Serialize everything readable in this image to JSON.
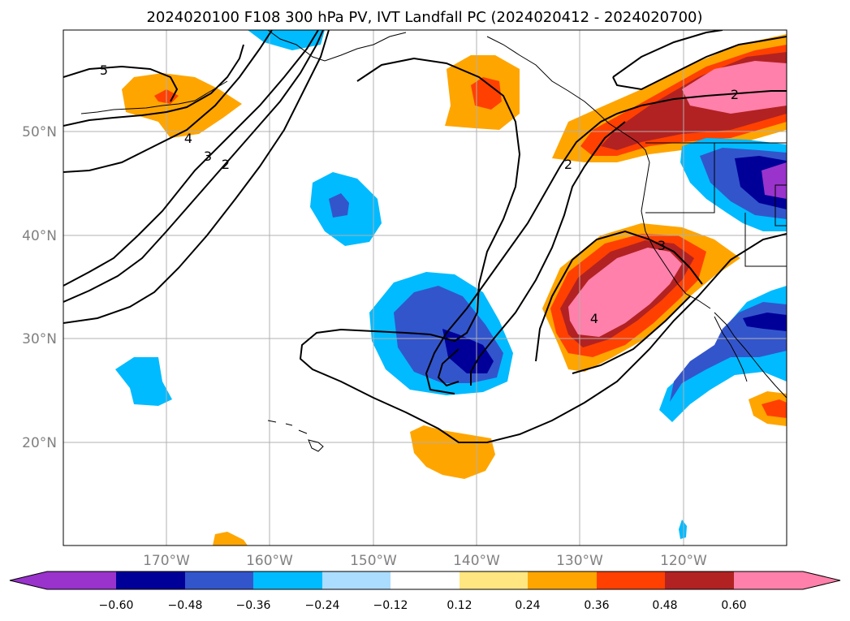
{
  "title": "2024020100 F108 300 hPa PV, IVT Landfall PC (2024020412 - 2024020700)",
  "latitude_labels": [
    "20°N",
    "30°N",
    "40°N",
    "50°N"
  ],
  "longitude_labels": [
    "170°W",
    "160°W",
    "150°W",
    "140°W",
    "130°W",
    "120°W"
  ],
  "colorbar": {
    "tick_labels": [
      "−0.60",
      "−0.48",
      "−0.36",
      "−0.24",
      "−0.12",
      "0.12",
      "0.24",
      "0.36",
      "0.48",
      "0.60"
    ],
    "colors": [
      "#9933cc",
      "#000099",
      "#3355cc",
      "#00bbff",
      "#aaddff",
      "#ffffff",
      "#ffe680",
      "#ffa500",
      "#ff4000",
      "#b22222",
      "#ff80aa"
    ]
  },
  "contour_labels": [
    "5",
    "4",
    "3",
    "2",
    "2",
    "2",
    "3",
    "4"
  ]
}
